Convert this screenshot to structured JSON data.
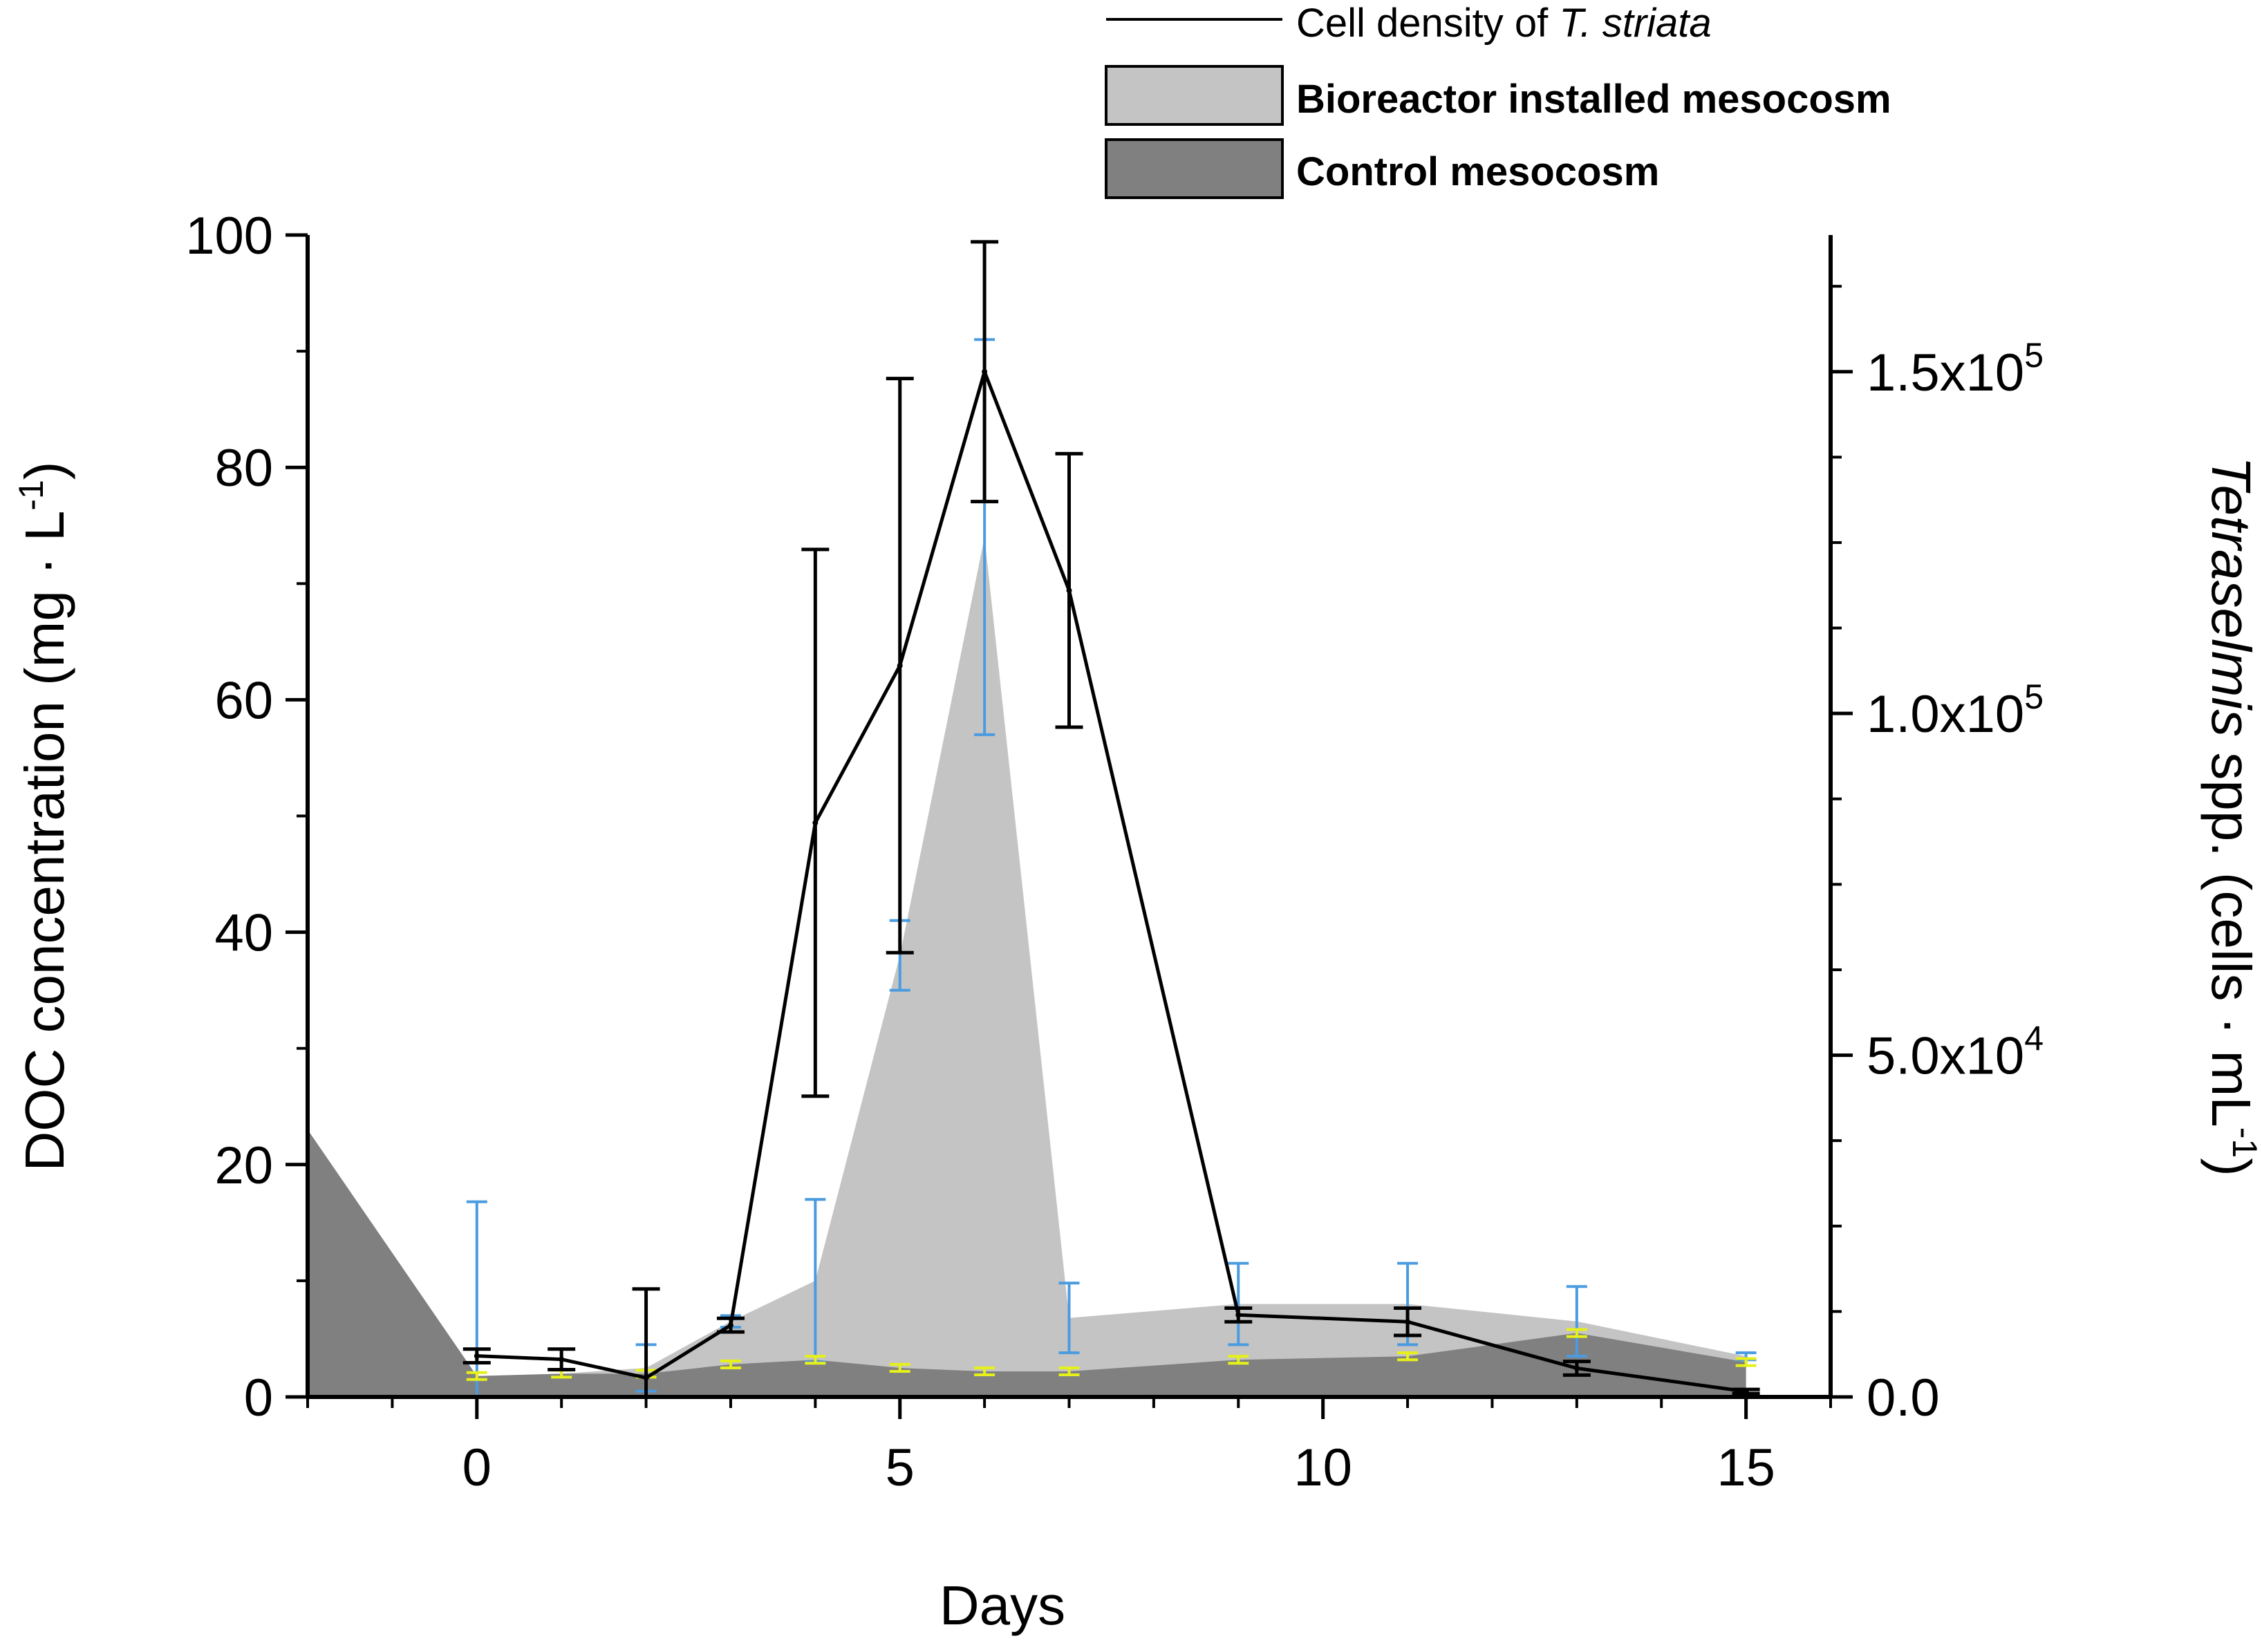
{
  "chart_data": {
    "type": "area",
    "xlabel": "Days",
    "ylabel": "DOC concentration (mg · L",
    "ylabel_sup": "-1",
    "ylabel_end": ")",
    "y2label_italic": "Tetraselmis",
    "y2label": " spp. (cells · mL",
    "y2label_sup": "-1",
    "y2label_end": ")",
    "xlim": [
      -2,
      16
    ],
    "ylim": [
      0,
      100
    ],
    "y2lim": [
      0,
      170000
    ],
    "x_ticks": [
      {
        "value": 0,
        "label": "0"
      },
      {
        "value": 5,
        "label": "5"
      },
      {
        "value": 10,
        "label": "10"
      },
      {
        "value": 15,
        "label": "15"
      }
    ],
    "y_ticks": [
      {
        "value": 0,
        "label": "0"
      },
      {
        "value": 20,
        "label": "20"
      },
      {
        "value": 40,
        "label": "40"
      },
      {
        "value": 60,
        "label": "60"
      },
      {
        "value": 80,
        "label": "80"
      },
      {
        "value": 100,
        "label": "100"
      }
    ],
    "y2_ticks": [
      {
        "value": 0,
        "mant": "0.0",
        "exp": ""
      },
      {
        "value": 50000,
        "mant": "5.0x10",
        "exp": "4"
      },
      {
        "value": 100000,
        "mant": "1.0x10",
        "exp": "5"
      },
      {
        "value": 150000,
        "mant": "1.5x10",
        "exp": "5"
      }
    ],
    "legend": {
      "line_label": "Cell density of ",
      "line_label_italic": "T. striata",
      "bioreactor_label": "Bioreactor installed mesocosm",
      "control_label": "Control mesocosm"
    },
    "series": [
      {
        "name": "Bioreactor installed mesocosm",
        "kind": "area",
        "color": "#c4c4c4",
        "x": [
          -2,
          0,
          1,
          2,
          3,
          4,
          5,
          6,
          7,
          9,
          11,
          13,
          15
        ],
        "y": [
          23,
          1.8,
          2,
          2.5,
          6.5,
          10,
          38,
          74,
          6.8,
          8,
          8,
          6.5,
          3.5
        ],
        "err": [
          0,
          15,
          0,
          2,
          0.5,
          7,
          3,
          17,
          3,
          3.5,
          3.5,
          3,
          0.3
        ],
        "err_color": "#4a9be0"
      },
      {
        "name": "Control mesocosm",
        "kind": "area",
        "color": "#808080",
        "x": [
          -2,
          0,
          1,
          2,
          3,
          4,
          5,
          6,
          7,
          9,
          11,
          13,
          15
        ],
        "y": [
          23,
          1.8,
          2,
          2,
          2.8,
          3.2,
          2.5,
          2.2,
          2.2,
          3.2,
          3.5,
          5.5,
          3
        ],
        "err": [
          0,
          0.3,
          0.3,
          0.3,
          0.3,
          0.3,
          0.3,
          0.3,
          0.3,
          0.3,
          0.3,
          0.3,
          0.3
        ],
        "err_color": "#e6f01a"
      },
      {
        "name": "Cell density of T. striata",
        "kind": "line",
        "axis": "right",
        "color": "#000000",
        "x": [
          0,
          1,
          2,
          3,
          4,
          5,
          6,
          7,
          9,
          11,
          13,
          15
        ],
        "y": [
          6000,
          5500,
          2800,
          10500,
          84000,
          107000,
          150000,
          118000,
          12000,
          11000,
          4200,
          800
        ],
        "err": [
          1000,
          1500,
          13000,
          1000,
          40000,
          42000,
          19000,
          20000,
          1000,
          2000,
          1000,
          300
        ]
      }
    ]
  }
}
